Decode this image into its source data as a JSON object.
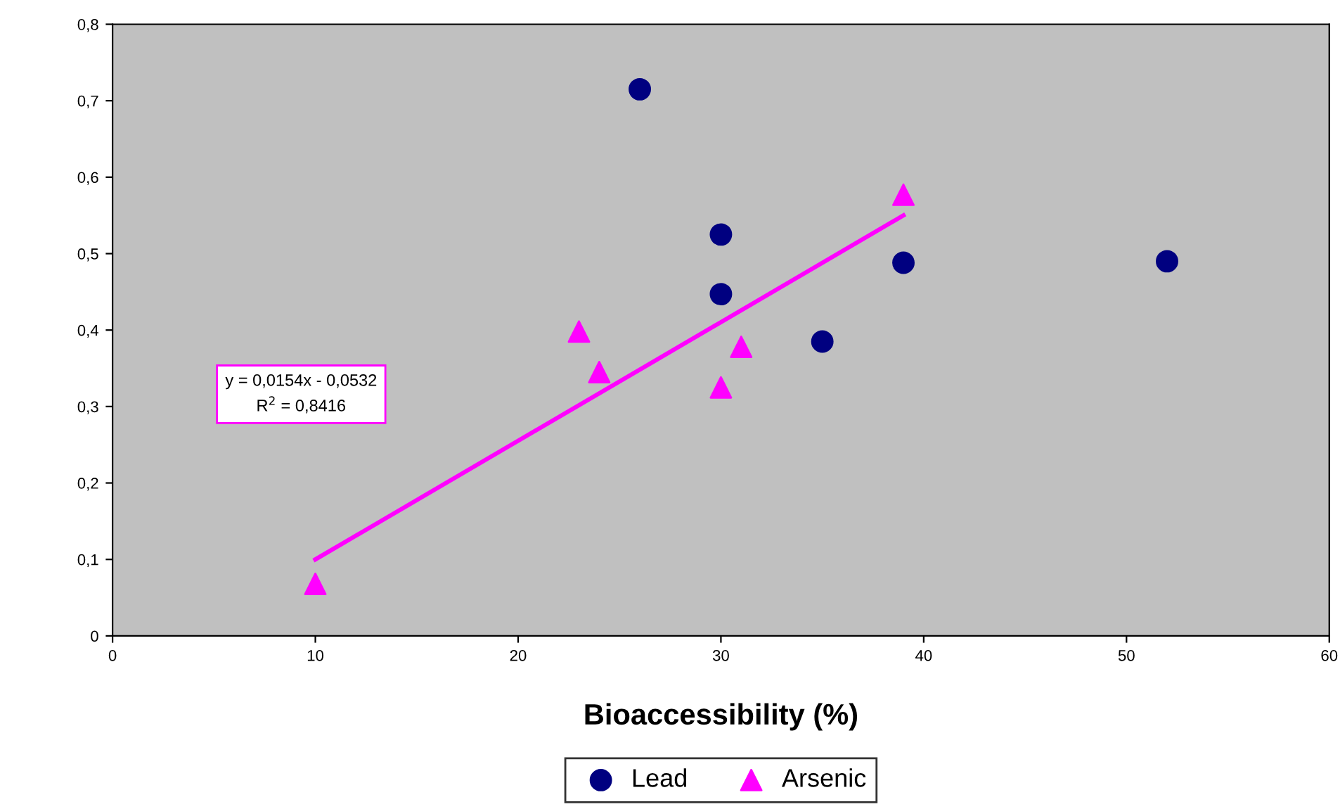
{
  "chart_data": {
    "type": "scatter",
    "xlabel": "Bioaccessibility (%)",
    "xlim": [
      0,
      60
    ],
    "xticks": [
      0,
      10,
      20,
      30,
      40,
      50,
      60
    ],
    "ylim": [
      0,
      0.8
    ],
    "yticks": [
      0,
      {
        "value": 0.1,
        "label": "0,1"
      },
      {
        "value": 0.2,
        "label": "0,2"
      },
      {
        "value": 0.3,
        "label": "0,3"
      },
      {
        "value": 0.4,
        "label": "0,4"
      },
      {
        "value": 0.5,
        "label": "0,5"
      },
      {
        "value": 0.6,
        "label": "0,6"
      },
      {
        "value": 0.7,
        "label": "0,7"
      },
      {
        "value": 0.8,
        "label": "0,8"
      }
    ],
    "series": [
      {
        "name": "Lead",
        "marker": "circle",
        "color": "#000080",
        "x": [
          26,
          30,
          30,
          35,
          39,
          52
        ],
        "values": [
          0.715,
          0.525,
          0.447,
          0.385,
          0.488,
          0.49
        ]
      },
      {
        "name": "Arsenic",
        "marker": "triangle",
        "color": "#ff00ff",
        "x": [
          10,
          23,
          24,
          30,
          31,
          39
        ],
        "values": [
          0.068,
          0.398,
          0.345,
          0.325,
          0.378,
          0.577
        ]
      },
      {
        "type": "line",
        "marker": "none",
        "color": "#ff00ff",
        "x": [
          10,
          39
        ],
        "values": [
          0.1,
          0.55
        ]
      }
    ],
    "annotations": [
      "y = 0,0154x - 0,0532\nR$^{2}$ = 0,8416"
    ],
    "grid": false,
    "legend": "bottom"
  }
}
